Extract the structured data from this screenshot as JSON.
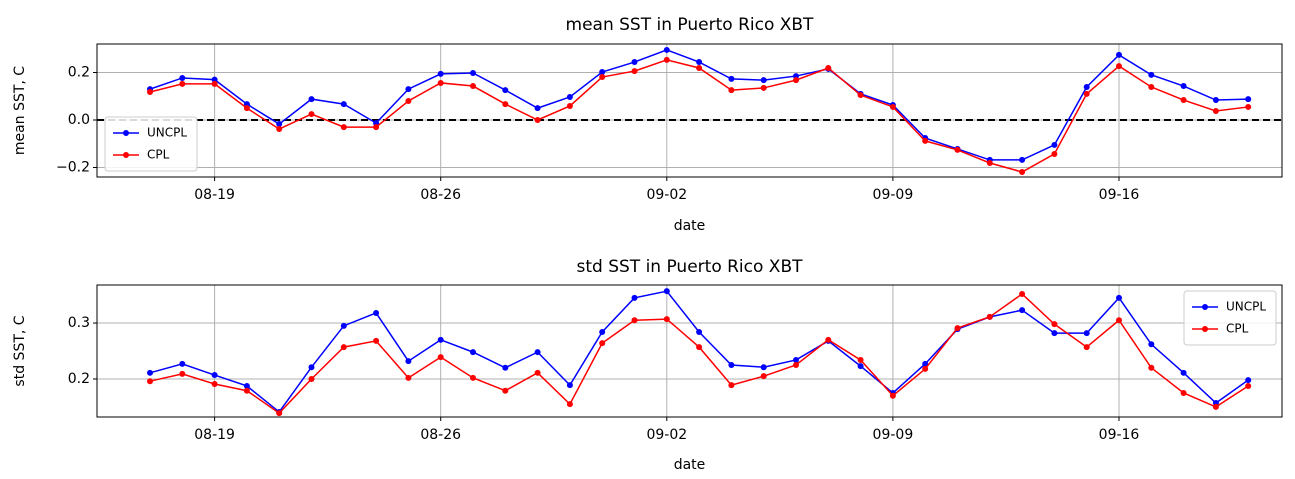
{
  "chart_data": [
    {
      "type": "line",
      "title": "mean SST in  Puerto Rico XBT",
      "xlabel": "date",
      "ylabel": "mean SST, C",
      "categories": [
        null,
        null,
        "08-19",
        null,
        null,
        null,
        null,
        null,
        null,
        "08-26",
        null,
        null,
        null,
        null,
        null,
        null,
        "09-02",
        null,
        null,
        null,
        null,
        null,
        null,
        "09-09",
        null,
        null,
        null,
        null,
        null,
        null,
        "09-16",
        null,
        null,
        null,
        null
      ],
      "series": [
        {
          "name": "UNCPL",
          "color": "#0000ff",
          "values": [
            0.13,
            0.177,
            0.17,
            0.067,
            -0.017,
            0.088,
            0.067,
            -0.013,
            0.13,
            0.194,
            0.198,
            0.126,
            0.05,
            0.097,
            0.202,
            0.244,
            0.295,
            0.244,
            0.173,
            0.168,
            0.185,
            0.215,
            0.11,
            0.063,
            -0.076,
            -0.122,
            -0.168,
            -0.168,
            -0.105,
            0.139,
            0.274,
            0.19,
            0.143,
            0.084,
            0.088
          ]
        },
        {
          "name": "CPL",
          "color": "#ff0000",
          "values": [
            0.118,
            0.152,
            0.152,
            0.05,
            -0.038,
            0.025,
            -0.03,
            -0.03,
            0.08,
            0.156,
            0.143,
            0.067,
            0.0,
            0.059,
            0.181,
            0.206,
            0.253,
            0.219,
            0.126,
            0.135,
            0.168,
            0.219,
            0.105,
            0.055,
            -0.088,
            -0.126,
            -0.181,
            -0.219,
            -0.143,
            0.11,
            0.227,
            0.139,
            0.084,
            0.038,
            0.055
          ]
        }
      ],
      "ylim": [
        -0.24,
        0.32
      ],
      "yticks": [
        {
          "value": -0.2,
          "label": "−0.2"
        },
        {
          "value": 0,
          "label": "0.0"
        },
        {
          "value": 0.2,
          "label": "0.2"
        }
      ],
      "hline": 0,
      "grid": true,
      "legend": "lower left"
    },
    {
      "type": "line",
      "title": "std SST in  Puerto Rico XBT",
      "xlabel": "date",
      "ylabel": "std SST, C",
      "categories": [
        null,
        null,
        "08-19",
        null,
        null,
        null,
        null,
        null,
        null,
        "08-26",
        null,
        null,
        null,
        null,
        null,
        null,
        "09-02",
        null,
        null,
        null,
        null,
        null,
        null,
        "09-09",
        null,
        null,
        null,
        null,
        null,
        null,
        "09-16",
        null,
        null,
        null,
        null
      ],
      "series": [
        {
          "name": "UNCPL",
          "color": "#0000ff",
          "values": [
            0.211,
            0.227,
            0.207,
            0.1875,
            0.141,
            0.221,
            0.295,
            0.318,
            0.232,
            0.27,
            0.248,
            0.22,
            0.248,
            0.189,
            0.284,
            0.345,
            0.357,
            0.284,
            0.225,
            0.221,
            0.234,
            0.268,
            0.223,
            0.175,
            0.227,
            0.289,
            0.311,
            0.323,
            0.282,
            0.282,
            0.345,
            0.262,
            0.211,
            0.157,
            0.198
          ]
        },
        {
          "name": "CPL",
          "color": "#ff0000",
          "values": [
            0.196,
            0.209,
            0.191,
            0.179,
            0.139,
            0.2,
            0.257,
            0.268,
            0.202,
            0.239,
            0.202,
            0.179,
            0.211,
            0.155,
            0.264,
            0.305,
            0.307,
            0.257,
            0.189,
            0.205,
            0.225,
            0.27,
            0.234,
            0.17,
            0.218,
            0.291,
            0.311,
            0.352,
            0.298,
            0.257,
            0.305,
            0.22,
            0.175,
            0.15,
            0.1875
          ]
        }
      ],
      "ylim": [
        0.132,
        0.368
      ],
      "yticks": [
        {
          "value": 0.2,
          "label": "0.2"
        },
        {
          "value": 0.3,
          "label": "0.3"
        }
      ],
      "grid": true,
      "legend": "upper right"
    }
  ]
}
